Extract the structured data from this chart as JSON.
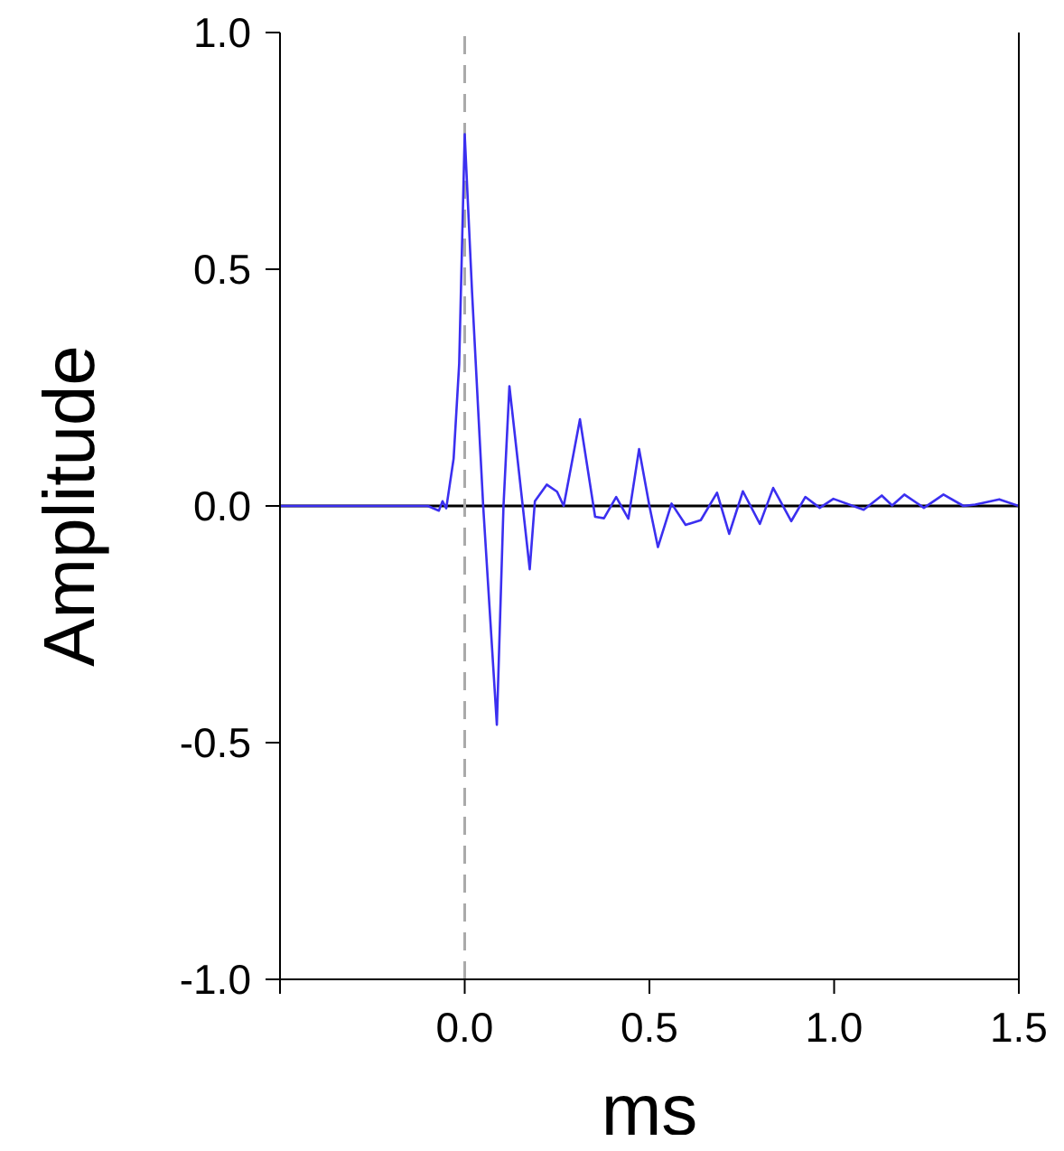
{
  "chart_data": {
    "type": "line",
    "xlabel": "ms",
    "ylabel": "Amplitude",
    "xlim": [
      -0.5,
      1.5
    ],
    "ylim": [
      -1.0,
      1.0
    ],
    "xticks": [
      {
        "value": -0.5,
        "label": null
      },
      {
        "value": 0,
        "label": "0.0"
      },
      {
        "value": 0.5,
        "label": "0.5"
      },
      {
        "value": 1,
        "label": "1.0"
      },
      {
        "value": 1.5,
        "label": "1.5"
      }
    ],
    "yticks": [
      {
        "value": -1,
        "label": "-1.0"
      },
      {
        "value": -0.5,
        "label": "-0.5"
      },
      {
        "value": 0,
        "label": "0.0"
      },
      {
        "value": 0.5,
        "label": "0.5"
      },
      {
        "value": 1,
        "label": "1.0"
      }
    ],
    "grid": false,
    "marker": "none",
    "line_style": "solid",
    "ref_lines": [
      {
        "axis": "y",
        "value": 0,
        "label": null,
        "color": "#000000",
        "line_style": "solid"
      },
      {
        "axis": "x",
        "value": 0,
        "label": null,
        "color": "#aaaaaa",
        "line_style": "dashed"
      }
    ],
    "series": [
      {
        "color": "#3b2ff0",
        "x": [
          -0.5,
          -0.1,
          -0.07,
          -0.06,
          -0.05,
          -0.03,
          -0.015,
          0,
          0.02,
          0.05,
          0.087,
          0.105,
          0.121,
          0.15,
          0.176,
          0.19,
          0.222,
          0.25,
          0.268,
          0.312,
          0.353,
          0.377,
          0.41,
          0.443,
          0.472,
          0.5,
          0.523,
          0.56,
          0.598,
          0.639,
          0.683,
          0.716,
          0.753,
          0.799,
          0.835,
          0.884,
          0.922,
          0.961,
          0.998,
          1.08,
          1.129,
          1.157,
          1.19,
          1.243,
          1.296,
          1.35,
          1.382,
          1.447,
          1.5
        ],
        "values": [
          0,
          0,
          -0.01,
          0.01,
          -0.005,
          0.1,
          0.3,
          0.785,
          0.45,
          0,
          -0.462,
          0,
          0.253,
          0.05,
          -0.134,
          0.01,
          0.045,
          0.03,
          0,
          0.183,
          -0.023,
          -0.026,
          0.019,
          -0.027,
          0.12,
          0,
          -0.087,
          0.005,
          -0.04,
          -0.03,
          0.028,
          -0.059,
          0.031,
          -0.038,
          0.038,
          -0.032,
          0.019,
          -0.004,
          0.015,
          -0.008,
          0.022,
          0.001,
          0.024,
          -0.004,
          0.024,
          0,
          0.003,
          0.014,
          0
        ]
      }
    ]
  }
}
